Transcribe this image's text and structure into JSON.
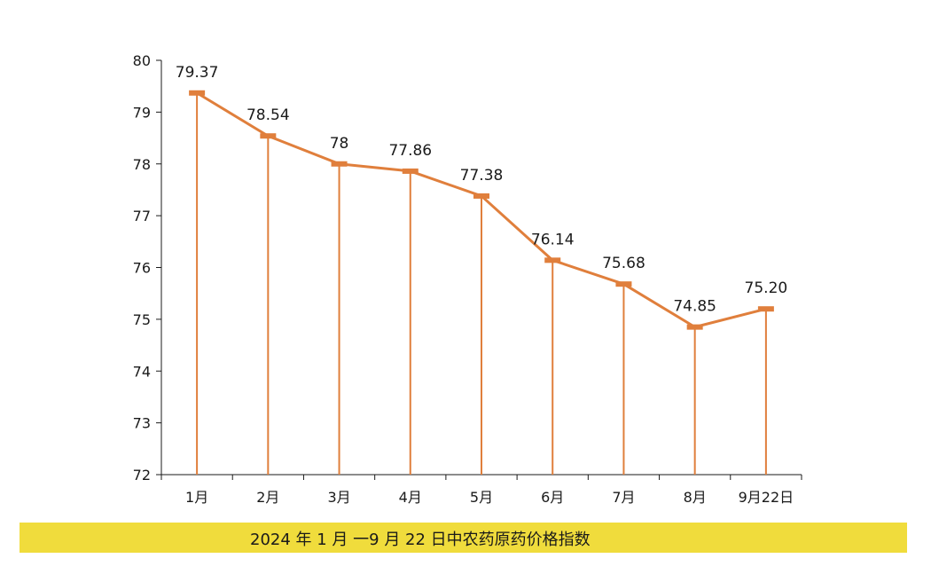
{
  "caption": "2024 年 1 月 一9 月 22 日中农药原药价格指数",
  "colors": {
    "line": "#e07f3c",
    "axis": "#1a1a1a",
    "caption_bg": "#f0dc3c"
  },
  "chart_data": {
    "type": "line",
    "categories": [
      "1月",
      "2月",
      "3月",
      "4月",
      "5月",
      "6月",
      "7月",
      "8月",
      "9月22日"
    ],
    "series": [
      {
        "values": [
          79.37,
          78.54,
          78,
          77.86,
          77.38,
          76.14,
          75.68,
          74.85,
          75.2
        ]
      }
    ],
    "data_labels": [
      "79.37",
      "78.54",
      "78",
      "77.86",
      "77.38",
      "76.14",
      "75.68",
      "74.85",
      "75.20"
    ],
    "ylim": [
      72,
      80
    ],
    "yticks": [
      72,
      73,
      74,
      75,
      76,
      77,
      78,
      79,
      80
    ],
    "drop_lines": true,
    "grid": false,
    "title": "",
    "xlabel": "",
    "ylabel": ""
  }
}
